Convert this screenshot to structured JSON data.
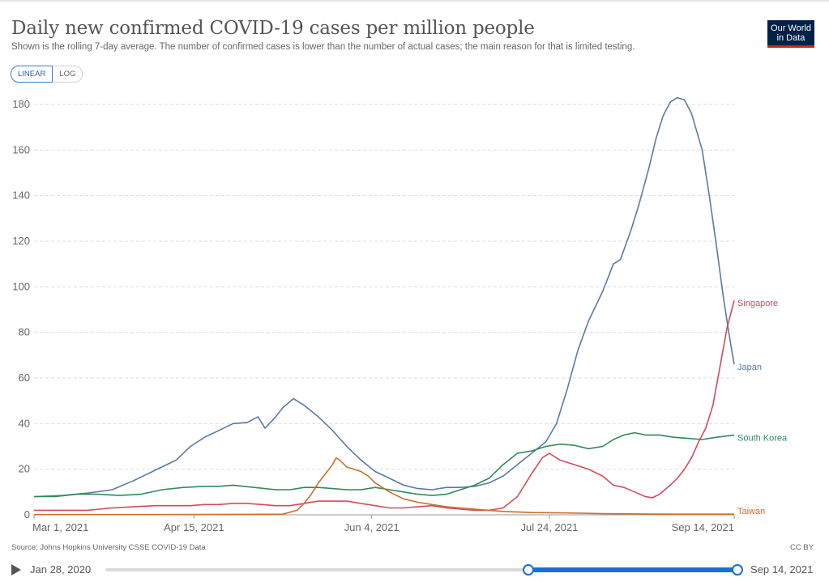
{
  "header": {
    "title": "Daily new confirmed COVID-19 cases per million people",
    "subtitle": "Shown is the rolling 7-day average. The number of confirmed cases is lower than the number of actual cases; the main reason for that is limited testing.",
    "logo_line1": "Our World",
    "logo_line2": "in Data"
  },
  "controls": {
    "linear_label": "LINEAR",
    "log_label": "LOG",
    "selected": "LINEAR"
  },
  "footer": {
    "source": "Source: Johns Hopkins University CSSE COVID-19 Data",
    "license": "CC BY"
  },
  "timeline": {
    "start_label": "Jan 28, 2020",
    "end_label": "Sep 14, 2021",
    "range_start": "Mar 1, 2021",
    "range_end": "Sep 14, 2021"
  },
  "colors": {
    "Japan": "#5b7aa5",
    "Singapore": "#d24b5c",
    "South Korea": "#2e8b57",
    "Taiwan": "#c8702f",
    "accent": "#1b6fd6"
  },
  "chart_data": {
    "type": "line",
    "x_start": "2021-03-01",
    "x_end": "2021-09-14",
    "xlim": [
      0,
      197
    ],
    "ylim": [
      0,
      180
    ],
    "yticks": [
      0,
      20,
      40,
      60,
      80,
      100,
      120,
      140,
      160,
      180
    ],
    "xticks": [
      {
        "x": 0,
        "label": "Mar 1, 2021"
      },
      {
        "x": 45,
        "label": "Apr 15, 2021"
      },
      {
        "x": 95,
        "label": "Jun 4, 2021"
      },
      {
        "x": 145,
        "label": "Jul 24, 2021"
      },
      {
        "x": 197,
        "label": "Sep 14, 2021"
      }
    ],
    "grid": true,
    "legend": "inline-right-end",
    "series": [
      {
        "name": "Japan",
        "points": [
          [
            0,
            8
          ],
          [
            8,
            8.5
          ],
          [
            15,
            9.5
          ],
          [
            22,
            11
          ],
          [
            28,
            15
          ],
          [
            34,
            19.5
          ],
          [
            40,
            24
          ],
          [
            44,
            30
          ],
          [
            48,
            34
          ],
          [
            52,
            37
          ],
          [
            56,
            40
          ],
          [
            60,
            40.5
          ],
          [
            63,
            43
          ],
          [
            65,
            38
          ],
          [
            68,
            43
          ],
          [
            70,
            47
          ],
          [
            73,
            51
          ],
          [
            76,
            48
          ],
          [
            80,
            43
          ],
          [
            84,
            37
          ],
          [
            88,
            30
          ],
          [
            92,
            24
          ],
          [
            96,
            19
          ],
          [
            100,
            16
          ],
          [
            104,
            13
          ],
          [
            108,
            11.5
          ],
          [
            112,
            11
          ],
          [
            116,
            12
          ],
          [
            120,
            12
          ],
          [
            124,
            12.5
          ],
          [
            128,
            14
          ],
          [
            132,
            17
          ],
          [
            136,
            22
          ],
          [
            140,
            27
          ],
          [
            144,
            32
          ],
          [
            147,
            40
          ],
          [
            150,
            55
          ],
          [
            153,
            72
          ],
          [
            156,
            85
          ],
          [
            160,
            98
          ],
          [
            163,
            110
          ],
          [
            165,
            112
          ],
          [
            168,
            125
          ],
          [
            170,
            135
          ],
          [
            173,
            152
          ],
          [
            175,
            165
          ],
          [
            177,
            175
          ],
          [
            179,
            181
          ],
          [
            181,
            183
          ],
          [
            183,
            182
          ],
          [
            185,
            176
          ],
          [
            188,
            160
          ],
          [
            190,
            140
          ],
          [
            192,
            118
          ],
          [
            194,
            95
          ],
          [
            196,
            75
          ],
          [
            197,
            66
          ]
        ]
      },
      {
        "name": "Singapore",
        "points": [
          [
            0,
            2
          ],
          [
            8,
            2
          ],
          [
            15,
            2
          ],
          [
            22,
            3
          ],
          [
            28,
            3.5
          ],
          [
            34,
            4
          ],
          [
            40,
            4
          ],
          [
            44,
            4
          ],
          [
            48,
            4.5
          ],
          [
            52,
            4.5
          ],
          [
            56,
            5
          ],
          [
            60,
            5
          ],
          [
            64,
            4.5
          ],
          [
            68,
            4
          ],
          [
            72,
            4
          ],
          [
            76,
            5
          ],
          [
            80,
            6
          ],
          [
            84,
            6
          ],
          [
            88,
            6
          ],
          [
            92,
            5
          ],
          [
            96,
            4
          ],
          [
            100,
            3
          ],
          [
            104,
            3
          ],
          [
            108,
            3.5
          ],
          [
            112,
            4
          ],
          [
            116,
            3
          ],
          [
            120,
            2.5
          ],
          [
            124,
            2
          ],
          [
            128,
            2
          ],
          [
            132,
            3
          ],
          [
            136,
            8
          ],
          [
            140,
            18
          ],
          [
            143,
            25
          ],
          [
            145,
            27
          ],
          [
            148,
            24
          ],
          [
            152,
            22
          ],
          [
            156,
            20
          ],
          [
            160,
            17
          ],
          [
            163,
            13
          ],
          [
            166,
            12
          ],
          [
            169,
            10
          ],
          [
            172,
            8
          ],
          [
            174,
            7.5
          ],
          [
            176,
            9
          ],
          [
            179,
            13
          ],
          [
            181,
            16
          ],
          [
            183,
            20
          ],
          [
            185,
            25
          ],
          [
            187,
            32
          ],
          [
            189,
            38
          ],
          [
            191,
            48
          ],
          [
            193,
            65
          ],
          [
            195,
            82
          ],
          [
            197,
            94
          ]
        ]
      },
      {
        "name": "South Korea",
        "points": [
          [
            0,
            8
          ],
          [
            6,
            8
          ],
          [
            12,
            9
          ],
          [
            18,
            9
          ],
          [
            24,
            8.5
          ],
          [
            30,
            9
          ],
          [
            36,
            11
          ],
          [
            42,
            12
          ],
          [
            48,
            12.5
          ],
          [
            52,
            12.5
          ],
          [
            56,
            13
          ],
          [
            62,
            12
          ],
          [
            68,
            11
          ],
          [
            72,
            11
          ],
          [
            76,
            12
          ],
          [
            80,
            12
          ],
          [
            84,
            11.5
          ],
          [
            88,
            11
          ],
          [
            92,
            11
          ],
          [
            96,
            12
          ],
          [
            100,
            11
          ],
          [
            104,
            10
          ],
          [
            108,
            9
          ],
          [
            112,
            8.5
          ],
          [
            116,
            9
          ],
          [
            120,
            11
          ],
          [
            124,
            13
          ],
          [
            128,
            16
          ],
          [
            132,
            22
          ],
          [
            136,
            27
          ],
          [
            140,
            28
          ],
          [
            144,
            30
          ],
          [
            148,
            31
          ],
          [
            152,
            30.5
          ],
          [
            156,
            29
          ],
          [
            160,
            30
          ],
          [
            163,
            33
          ],
          [
            166,
            35
          ],
          [
            169,
            36
          ],
          [
            172,
            35
          ],
          [
            176,
            35
          ],
          [
            180,
            34
          ],
          [
            184,
            33.5
          ],
          [
            188,
            33
          ],
          [
            192,
            34
          ],
          [
            197,
            35
          ]
        ]
      },
      {
        "name": "Taiwan",
        "points": [
          [
            0,
            0.1
          ],
          [
            30,
            0.1
          ],
          [
            60,
            0.2
          ],
          [
            70,
            0.3
          ],
          [
            74,
            2
          ],
          [
            76,
            5
          ],
          [
            78,
            9
          ],
          [
            80,
            14
          ],
          [
            82,
            18
          ],
          [
            84,
            22
          ],
          [
            85,
            25
          ],
          [
            86,
            24
          ],
          [
            88,
            21
          ],
          [
            90,
            20
          ],
          [
            92,
            19
          ],
          [
            94,
            17
          ],
          [
            96,
            14
          ],
          [
            100,
            10
          ],
          [
            104,
            7
          ],
          [
            108,
            5.5
          ],
          [
            112,
            4.5
          ],
          [
            116,
            3.5
          ],
          [
            120,
            3
          ],
          [
            124,
            2.5
          ],
          [
            128,
            2
          ],
          [
            132,
            1.5
          ],
          [
            140,
            1
          ],
          [
            150,
            0.8
          ],
          [
            160,
            0.5
          ],
          [
            170,
            0.4
          ],
          [
            180,
            0.3
          ],
          [
            197,
            0.3
          ]
        ]
      }
    ]
  }
}
